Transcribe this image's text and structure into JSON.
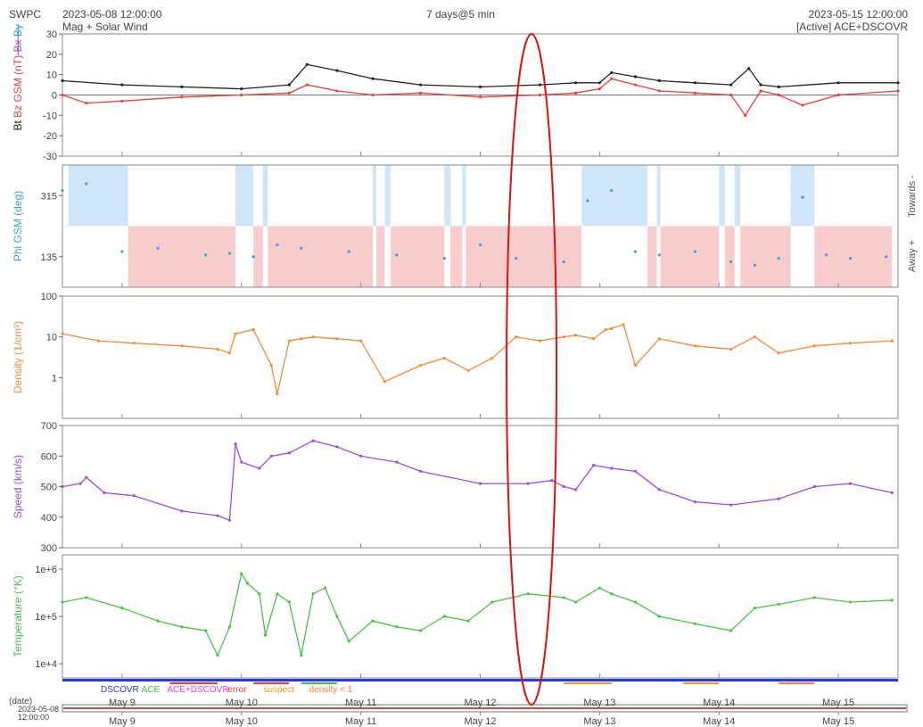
{
  "header": {
    "org": "SWPC",
    "start": "2023-05-08 12:00:00",
    "subtitle": "Mag + Solar Wind",
    "center": "7 days@5 min",
    "end": "2023-05-15 12:00:00",
    "source": "[Active] ACE+DSCOVR"
  },
  "colors": {
    "bt": "#222222",
    "bz": "#e8413c",
    "bx": "#9b59d0",
    "by": "#3aa0e0",
    "phi": "#3aa0e0",
    "density": "#f28a3c",
    "speed": "#9b4fd6",
    "temperature": "#4fbf4a",
    "annotation": "#e01010",
    "toward_fill": "#cfe6f8",
    "away_fill": "#f8cccc"
  },
  "chart_data": [
    {
      "type": "line",
      "panel": "mag",
      "ylabel_parts": [
        "Bt",
        "Bz GSM (nT)",
        "Bx",
        "By"
      ],
      "ylim": [
        -30,
        30
      ],
      "yticks": [
        30,
        20,
        10,
        0,
        -10,
        -20,
        -30
      ],
      "series": [
        {
          "name": "Bt",
          "color_key": "bt",
          "x": [
            0,
            0.5,
            1.0,
            1.5,
            1.9,
            2.05,
            2.3,
            2.6,
            3.0,
            3.5,
            4.0,
            4.3,
            4.5,
            4.6,
            4.8,
            5.0,
            5.3,
            5.6,
            5.75,
            5.85,
            6.0,
            6.5,
            7.0
          ],
          "y": [
            7,
            5,
            4,
            3,
            5,
            15,
            12,
            8,
            5,
            4,
            5,
            6,
            6,
            11,
            9,
            7,
            6,
            5,
            13,
            5,
            4,
            6,
            6
          ]
        },
        {
          "name": "Bz GSM",
          "color_key": "bz",
          "x": [
            0,
            0.2,
            0.5,
            1.0,
            1.5,
            1.9,
            2.05,
            2.3,
            2.6,
            3.0,
            3.5,
            4.0,
            4.3,
            4.5,
            4.6,
            4.8,
            5.0,
            5.3,
            5.6,
            5.72,
            5.85,
            6.0,
            6.2,
            6.5,
            7.0
          ],
          "y": [
            0,
            -4,
            -3,
            -1,
            0,
            1,
            5,
            2,
            0,
            1,
            -1,
            0,
            1,
            3,
            8,
            5,
            2,
            1,
            0,
            -10,
            2,
            0,
            -5,
            0,
            2
          ]
        }
      ]
    },
    {
      "type": "scatter",
      "panel": "phi",
      "ylabel": "Phi GSM (deg)",
      "right_labels": [
        "Towards -",
        "Away +"
      ],
      "ylim": [
        45,
        405
      ],
      "yticks": [
        315,
        135
      ],
      "toward_intervals": [
        [
          0.05,
          0.55
        ],
        [
          1.45,
          1.6
        ],
        [
          1.68,
          1.72
        ],
        [
          2.6,
          2.63
        ],
        [
          2.7,
          2.75
        ],
        [
          3.2,
          3.25
        ],
        [
          3.35,
          3.38
        ],
        [
          4.35,
          4.9
        ],
        [
          4.98,
          5.01
        ],
        [
          5.5,
          5.55
        ],
        [
          5.63,
          5.68
        ],
        [
          6.1,
          6.3
        ]
      ],
      "away_intervals": [
        [
          0.55,
          1.45
        ],
        [
          1.6,
          1.68
        ],
        [
          1.72,
          2.6
        ],
        [
          2.63,
          2.7
        ],
        [
          2.75,
          3.2
        ],
        [
          3.25,
          3.35
        ],
        [
          3.38,
          4.35
        ],
        [
          4.9,
          4.98
        ],
        [
          5.01,
          5.5
        ],
        [
          5.55,
          5.63
        ],
        [
          5.68,
          6.1
        ],
        [
          6.3,
          6.95
        ]
      ],
      "series": [
        {
          "name": "Phi",
          "color_key": "phi",
          "x": [
            0,
            0.2,
            0.5,
            0.8,
            1.2,
            1.4,
            1.6,
            1.8,
            2.0,
            2.4,
            2.8,
            3.2,
            3.5,
            3.8,
            4.2,
            4.4,
            4.6,
            4.8,
            5.0,
            5.3,
            5.6,
            5.8,
            6.0,
            6.2,
            6.4,
            6.6,
            6.9
          ],
          "y": [
            330,
            350,
            150,
            160,
            140,
            145,
            135,
            170,
            160,
            150,
            140,
            130,
            170,
            130,
            120,
            300,
            330,
            150,
            140,
            150,
            120,
            110,
            130,
            310,
            140,
            130,
            135
          ]
        }
      ]
    },
    {
      "type": "line",
      "panel": "density",
      "ylabel": "Density (1/cm³)",
      "yscale": "log",
      "ylim": [
        0.1,
        100
      ],
      "yticks": [
        100,
        10,
        1
      ],
      "series": [
        {
          "name": "Density",
          "color_key": "density",
          "x": [
            0,
            0.3,
            0.6,
            1.0,
            1.3,
            1.4,
            1.45,
            1.6,
            1.75,
            1.8,
            1.9,
            2.0,
            2.1,
            2.3,
            2.5,
            2.7,
            3.0,
            3.2,
            3.4,
            3.6,
            3.8,
            4.0,
            4.2,
            4.3,
            4.45,
            4.55,
            4.6,
            4.7,
            4.8,
            5.0,
            5.3,
            5.6,
            5.8,
            6.0,
            6.3,
            6.6,
            6.95
          ],
          "y": [
            12,
            8,
            7,
            6,
            5,
            4,
            12,
            15,
            2,
            0.4,
            8,
            9,
            10,
            9,
            8,
            0.8,
            2,
            3,
            1.5,
            3,
            10,
            8,
            10,
            11,
            9,
            15,
            16,
            20,
            2,
            9,
            6,
            5,
            10,
            4,
            6,
            7,
            8
          ]
        }
      ]
    },
    {
      "type": "line",
      "panel": "speed",
      "ylabel": "Speed (km/s)",
      "ylim": [
        300,
        700
      ],
      "yticks": [
        700,
        600,
        500,
        400,
        300
      ],
      "series": [
        {
          "name": "Speed",
          "color_key": "speed",
          "x": [
            0,
            0.15,
            0.2,
            0.35,
            0.6,
            1.0,
            1.3,
            1.4,
            1.45,
            1.5,
            1.65,
            1.75,
            1.9,
            2.1,
            2.3,
            2.5,
            2.8,
            3.0,
            3.5,
            3.9,
            4.1,
            4.2,
            4.3,
            4.45,
            4.6,
            4.8,
            5.0,
            5.3,
            5.6,
            6.0,
            6.3,
            6.6,
            6.95
          ],
          "y": [
            500,
            510,
            530,
            480,
            470,
            420,
            405,
            390,
            640,
            580,
            560,
            600,
            610,
            650,
            630,
            600,
            580,
            550,
            510,
            510,
            520,
            500,
            490,
            570,
            560,
            550,
            490,
            450,
            440,
            460,
            500,
            510,
            480
          ]
        }
      ]
    },
    {
      "type": "line",
      "panel": "temperature",
      "ylabel": "Temperature (°K)",
      "yscale": "log",
      "ylim": [
        5000,
        2000000
      ],
      "yticks": [
        1000000,
        100000,
        10000
      ],
      "ytick_labels": [
        "1e+6",
        "1e+5",
        "1e+4"
      ],
      "series": [
        {
          "name": "Temperature",
          "color_key": "temperature",
          "x": [
            0,
            0.2,
            0.5,
            0.8,
            1.0,
            1.2,
            1.3,
            1.4,
            1.5,
            1.55,
            1.65,
            1.7,
            1.8,
            1.9,
            2.0,
            2.1,
            2.2,
            2.3,
            2.4,
            2.6,
            2.8,
            3.0,
            3.2,
            3.4,
            3.6,
            3.9,
            4.2,
            4.3,
            4.5,
            4.6,
            4.8,
            5.0,
            5.3,
            5.6,
            5.8,
            6.0,
            6.3,
            6.6,
            6.95
          ],
          "y": [
            200000,
            250000,
            150000,
            80000,
            60000,
            50000,
            15000,
            60000,
            800000,
            500000,
            300000,
            40000,
            300000,
            200000,
            15000,
            300000,
            400000,
            100000,
            30000,
            80000,
            60000,
            50000,
            100000,
            80000,
            200000,
            300000,
            250000,
            200000,
            400000,
            300000,
            200000,
            100000,
            70000,
            50000,
            150000,
            180000,
            250000,
            200000,
            220000
          ]
        }
      ]
    }
  ],
  "xaxis": {
    "xlim": [
      0,
      7
    ],
    "ticks": [
      0.5,
      1.5,
      2.5,
      3.5,
      4.5,
      5.5,
      6.5
    ],
    "tick_labels": [
      "May 9",
      "May 10",
      "May 11",
      "May 12",
      "May 13",
      "May 14",
      "May 15"
    ]
  },
  "legend": {
    "items": [
      {
        "label": "DSCOVR",
        "color": "#2a3ad6"
      },
      {
        "label": "ACE",
        "color": "#3fbf3f"
      },
      {
        "label": "ACE+DSCOVR",
        "color": "#e040e0"
      },
      {
        "label": "error",
        "color": "#e04040"
      },
      {
        "label": "suspect",
        "color": "#e0a020"
      },
      {
        "label": "density < 1",
        "color": "#f08040"
      }
    ]
  },
  "range_bar": {
    "label": "(date)",
    "start_date": "2023-05-08",
    "start_time": "12:00:00"
  },
  "annotation": {
    "type": "ellipse",
    "x_center": 3.93
  }
}
